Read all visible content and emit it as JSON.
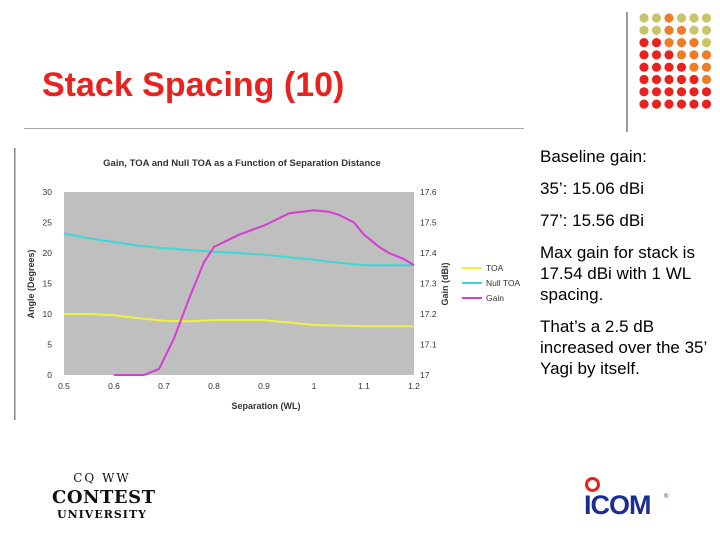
{
  "slide": {
    "title": "Stack Spacing (10)",
    "bullets": [
      "Baseline gain:",
      "35’: 15.06 dBi",
      "77’: 15.56 dBi",
      "Max gain for stack is 17.54 dBi with 1 WL spacing.",
      "That’s a 2.5 dB increased over the 35’ Yagi by itself."
    ],
    "logo_left": {
      "top": "CQ WW",
      "line1": "CONTEST",
      "line2": "UNIVERSITY"
    },
    "logo_right": {
      "text": "ICOM",
      "tm": "®"
    },
    "colors": {
      "title": "#e8231f",
      "dot_red": "#e8231f",
      "dot_orange": "#f07c28",
      "dot_olive": "#c9c46a",
      "brand_blue": "#1b2d8f"
    }
  },
  "chart_data": {
    "type": "line",
    "title": "Gain, TOA and Null TOA as a Function of Separation Distance",
    "xlabel": "Separation (WL)",
    "ylabel_left": "Angle (Degrees)",
    "ylabel_right": "Gain (dBi)",
    "xlim": [
      0.5,
      1.2
    ],
    "ylim_left": [
      0,
      30
    ],
    "ylim_right": [
      17.0,
      17.6
    ],
    "x_ticks": [
      "0.5",
      "0.6",
      "0.7",
      "0.8",
      "0.9",
      "1",
      "1.1",
      "1.2"
    ],
    "y_ticks_left": [
      "0",
      "5",
      "10",
      "15",
      "20",
      "25",
      "30"
    ],
    "y_ticks_right": [
      "17",
      "17.1",
      "17.2",
      "17.3",
      "17.4",
      "17.5",
      "17.6"
    ],
    "legend_position": "right",
    "grid": false,
    "series": [
      {
        "name": "TOA",
        "axis": "left",
        "color": "#f0f03c",
        "x": [
          0.5,
          0.55,
          0.6,
          0.65,
          0.7,
          0.75,
          0.8,
          0.85,
          0.9,
          0.95,
          1.0,
          1.05,
          1.1,
          1.15,
          1.2
        ],
        "values": [
          10,
          10,
          9.8,
          9.3,
          8.9,
          8.8,
          9,
          9,
          9,
          8.6,
          8.2,
          8.1,
          8,
          8,
          8
        ]
      },
      {
        "name": "Null TOA",
        "axis": "left",
        "color": "#3cd8d8",
        "x": [
          0.5,
          0.55,
          0.6,
          0.65,
          0.7,
          0.75,
          0.8,
          0.85,
          0.9,
          0.95,
          1.0,
          1.05,
          1.1,
          1.15,
          1.2
        ],
        "values": [
          23.2,
          22.4,
          21.8,
          21.2,
          20.8,
          20.5,
          20.2,
          20,
          19.7,
          19.3,
          18.9,
          18.4,
          18,
          18,
          18
        ]
      },
      {
        "name": "Gain",
        "axis": "right",
        "color": "#d43cd4",
        "x": [
          0.6,
          0.63,
          0.66,
          0.69,
          0.72,
          0.75,
          0.78,
          0.8,
          0.85,
          0.9,
          0.95,
          1.0,
          1.03,
          1.05,
          1.08,
          1.1,
          1.13,
          1.15,
          1.18,
          1.2
        ],
        "values": [
          17.0,
          17.0,
          17.0,
          17.02,
          17.12,
          17.25,
          17.37,
          17.42,
          17.46,
          17.49,
          17.53,
          17.54,
          17.535,
          17.525,
          17.5,
          17.46,
          17.42,
          17.4,
          17.38,
          17.36
        ]
      }
    ]
  }
}
